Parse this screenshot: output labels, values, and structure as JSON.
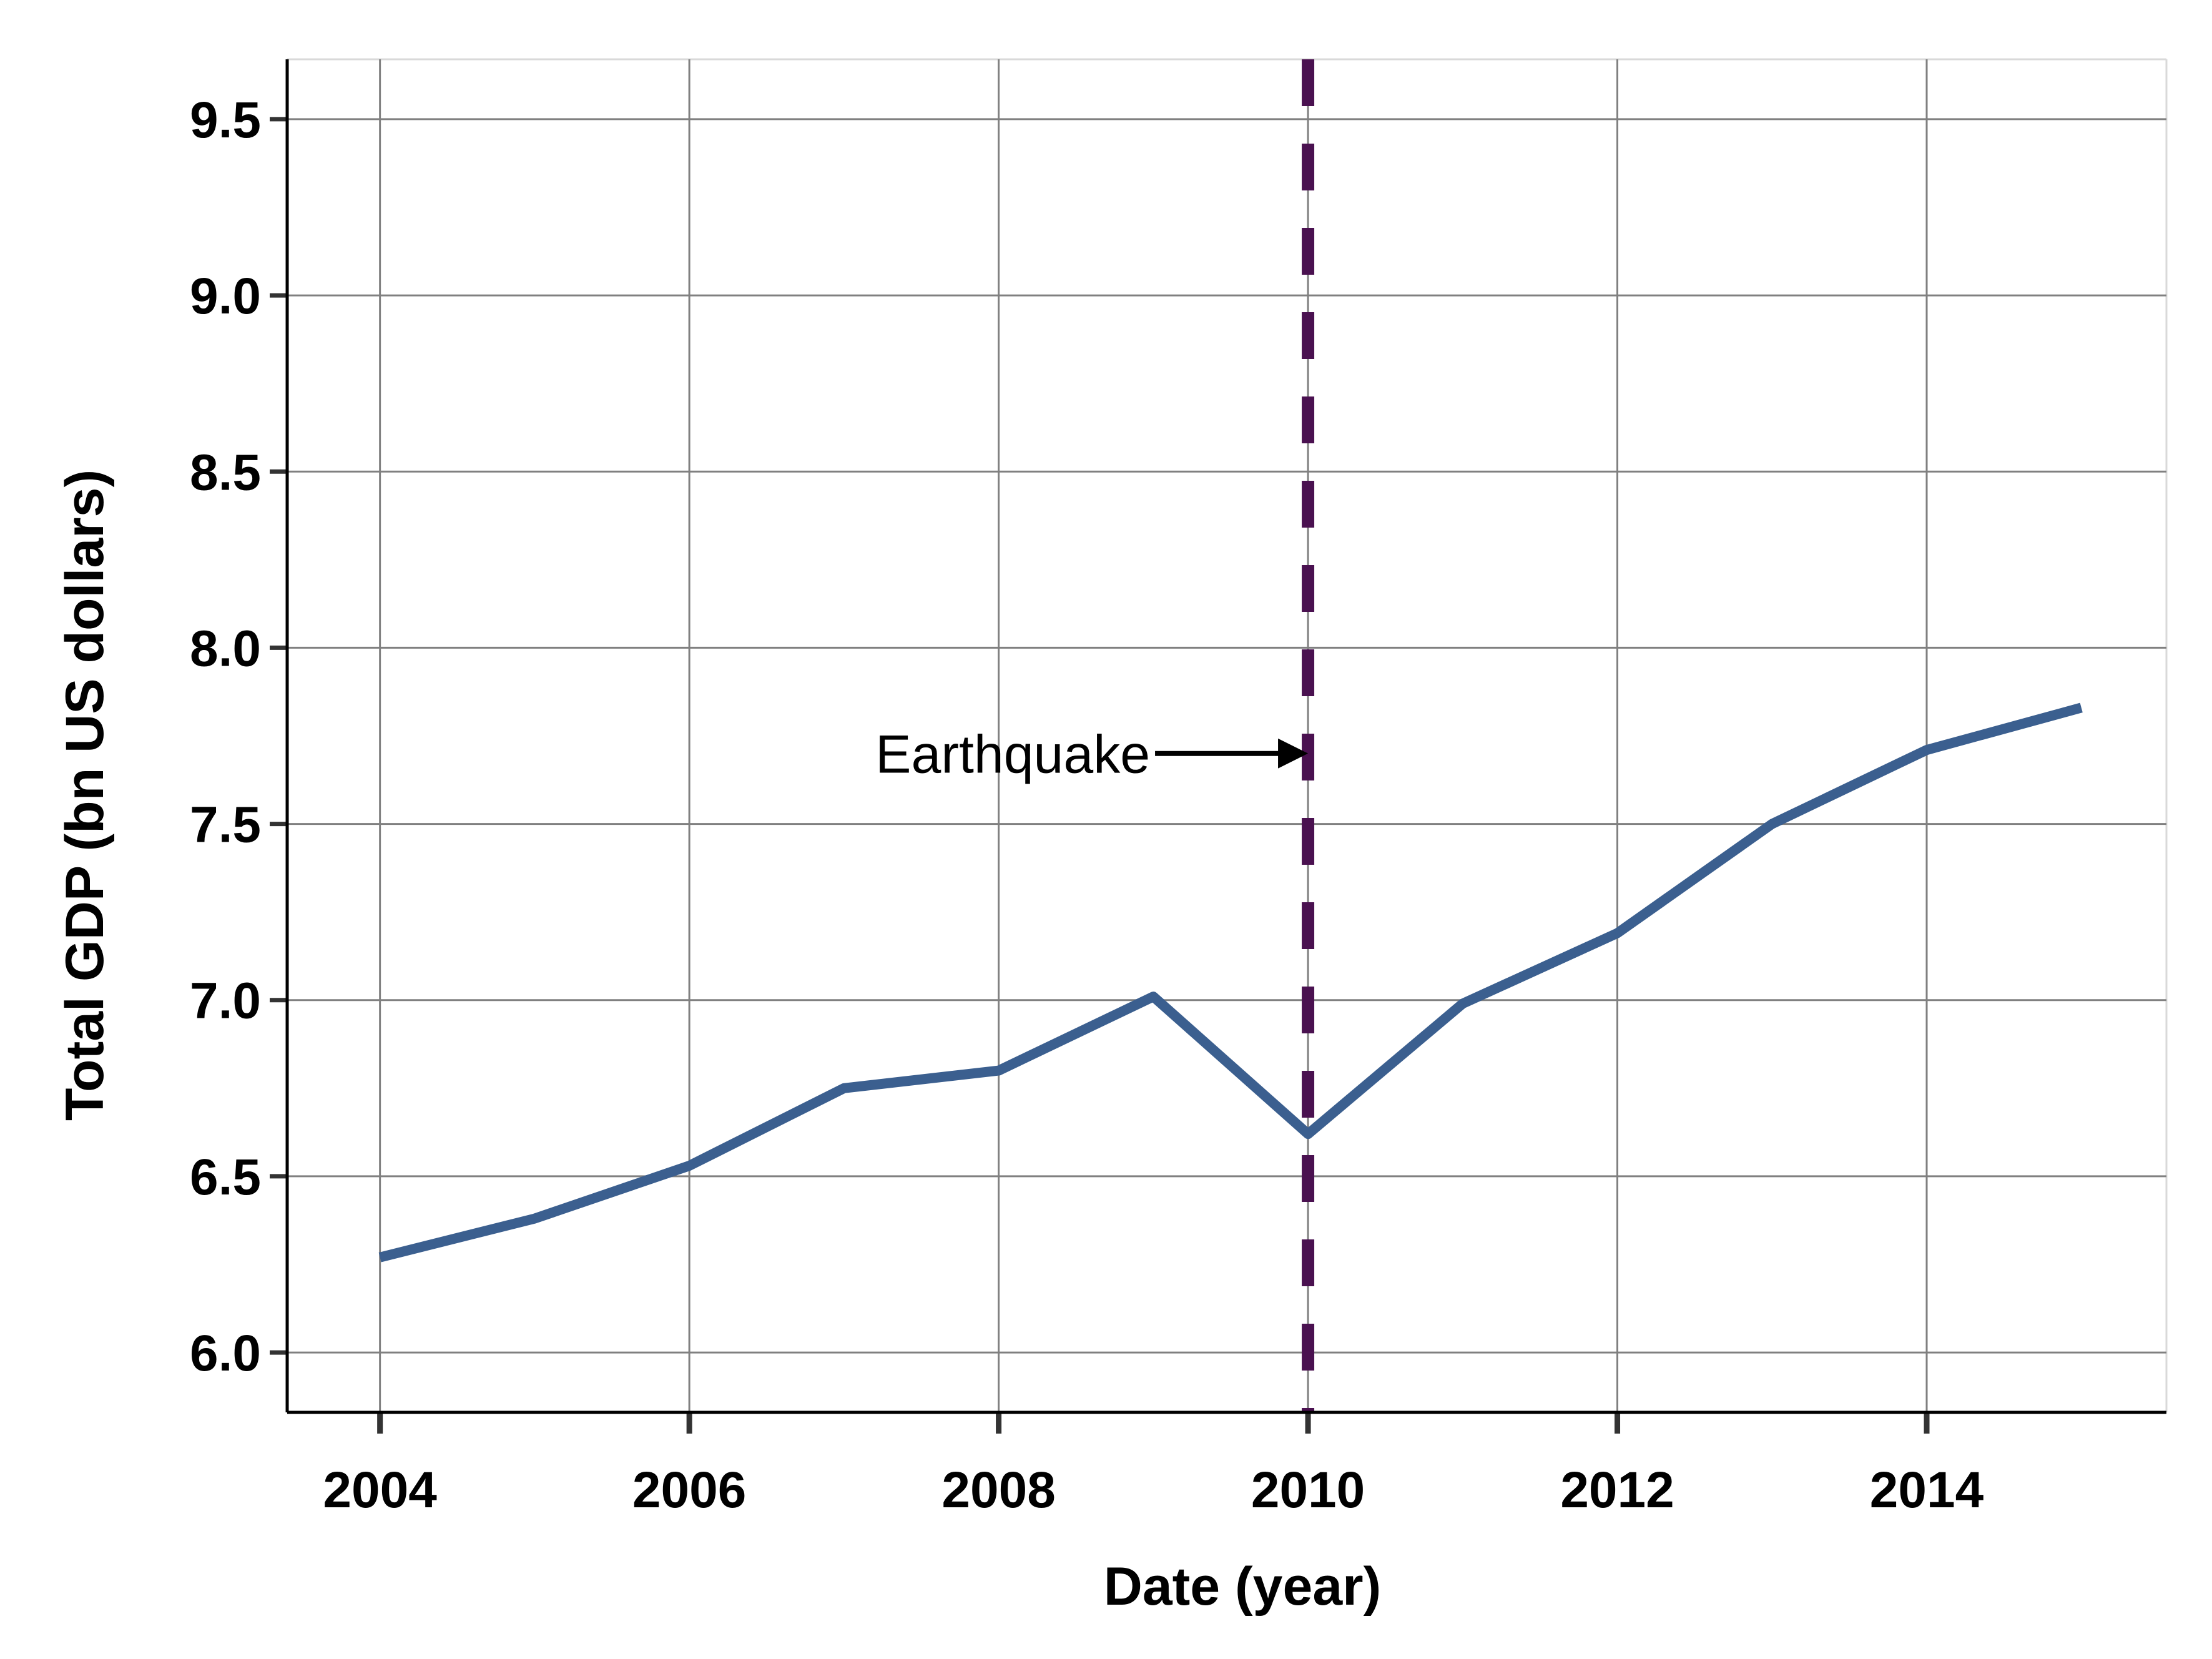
{
  "chart_data": {
    "type": "line",
    "title": "",
    "xlabel": "Date (year)",
    "ylabel": "Total GDP (bn US dollars)",
    "xlim": [
      2003.4,
      2015.55
    ],
    "ylim": [
      5.83,
      9.67
    ],
    "x_ticks": [
      2004,
      2006,
      2008,
      2010,
      2012,
      2014
    ],
    "x_tick_labels": [
      "2004",
      "2006",
      "2008",
      "2010",
      "2012",
      "2014"
    ],
    "y_ticks": [
      6.0,
      6.5,
      7.0,
      7.5,
      8.0,
      8.5,
      9.0,
      9.5
    ],
    "y_tick_labels": [
      "6.0",
      "6.5",
      "7.0",
      "7.5",
      "8.0",
      "8.5",
      "9.0",
      "9.5"
    ],
    "grid": true,
    "series": [
      {
        "color": "#3b5f8f",
        "x": [
          2004,
          2005,
          2006,
          2007,
          2008,
          2009,
          2010,
          2011,
          2012,
          2013,
          2014,
          2015
        ],
        "values": [
          6.27,
          6.38,
          6.53,
          6.75,
          6.8,
          7.01,
          6.62,
          6.99,
          7.19,
          7.5,
          7.71,
          7.83
        ]
      }
    ],
    "vline": {
      "x": 2010,
      "color": "#4a1150",
      "style": "dashed"
    },
    "annotations": [
      {
        "text": "Earthquake",
        "arrow_to": {
          "x": 2010,
          "y": 7.7
        }
      }
    ],
    "colors": {
      "line": "#3b5f8f",
      "vline": "#4a1150",
      "grid": "#808080",
      "axis": "#000000"
    }
  }
}
